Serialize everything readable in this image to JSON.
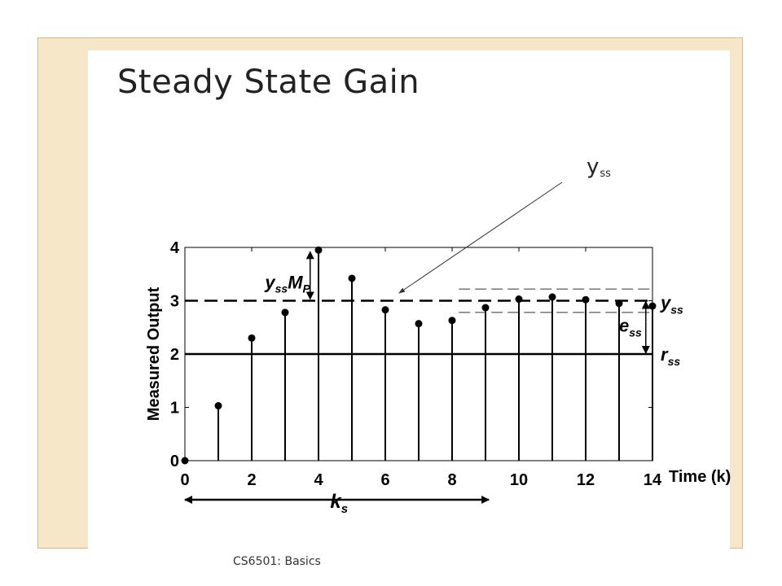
{
  "slide": {
    "title": "Steady State Gain",
    "annotation_main": "y",
    "annotation_sub": "ss",
    "footer": "CS6501: Basics"
  },
  "colors": {
    "frame": "#f7e7c9",
    "frame_border": "#d9b98a",
    "ink": "#000000"
  },
  "chart_data": {
    "type": "stem",
    "ylabel": "Measured Output",
    "xlabel": "Time (k)",
    "xlim": [
      0,
      14
    ],
    "ylim": [
      0,
      4
    ],
    "xticks": [
      0,
      2,
      4,
      6,
      8,
      10,
      12,
      14
    ],
    "yticks": [
      0,
      1,
      2,
      3,
      4
    ],
    "x": [
      0,
      1,
      2,
      3,
      4,
      5,
      6,
      7,
      8,
      9,
      10,
      11,
      12,
      13,
      14
    ],
    "y": [
      0,
      1.03,
      2.3,
      2.78,
      3.95,
      3.42,
      2.83,
      2.57,
      2.63,
      2.87,
      3.03,
      3.07,
      3.02,
      2.95,
      2.9
    ],
    "yss": 3.0,
    "rss": 2.0,
    "band": [
      2.78,
      3.22
    ],
    "labels": {
      "yss_mp": "y",
      "yss_mp_sub": "ss",
      "yss_mp_M": "M",
      "yss_mp_P": "P",
      "yss": "y",
      "yss_sub": "ss",
      "ess": "e",
      "ess_sub": "ss",
      "rss": "r",
      "rss_sub": "ss",
      "ks": "k",
      "ks_sub": "s"
    }
  }
}
